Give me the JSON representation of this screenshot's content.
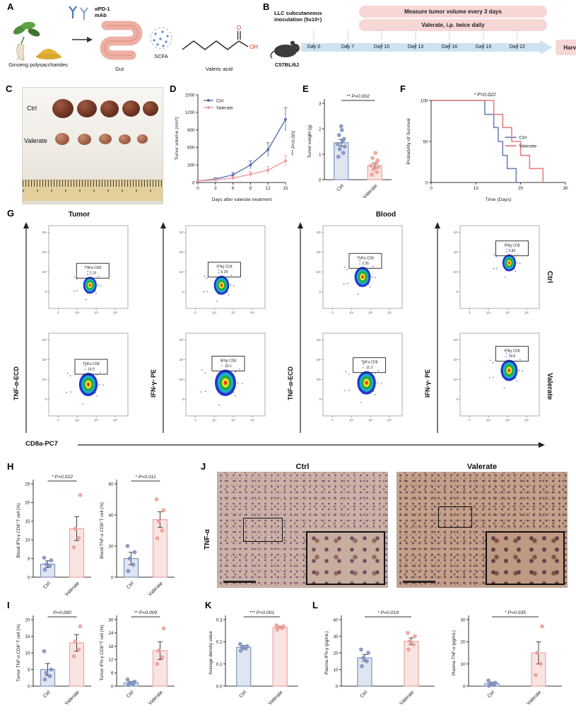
{
  "colors": {
    "ctrl_line": "#5b73ad",
    "val_line": "#ee9d9d",
    "ctrl_bar_fill": "#dfe6f2",
    "ctrl_bar_stroke": "#8093bf",
    "val_bar_fill": "#fae4e2",
    "val_bar_stroke": "#eba6a0",
    "ctrl_dot": "#7b8fc2",
    "val_dot": "#ef9a91",
    "surv_ctrl": "#6d83b8",
    "surv_val": "#e87f7f",
    "axis": "#333333"
  },
  "panels": {
    "A": {
      "label": "A",
      "apd1_l1": "αPD-1",
      "apd1_l2": "mAb",
      "ginseng_label": "Ginseng polysaccharides",
      "gut_label": "Gut",
      "scfa_label": "SCFA",
      "valeric_label": "Valeric acid",
      "structure_o": "O",
      "structure_oh": "OH"
    },
    "B": {
      "label": "B",
      "inoc_l1": "LLC subcutaneous",
      "inoc_l2": "inoculation (5x10⁶)",
      "measure_box": "Measure tumor volume every 3 days",
      "valerate_box": "Valerate, i.p. twice daily",
      "days": [
        "Day 0",
        "Day 7",
        "Day 10",
        "Day 13",
        "Day 16",
        "Day 19",
        "Day 22"
      ],
      "harvest": "Harvest",
      "mouse_strain": "C57BL/6J"
    },
    "C": {
      "label": "C",
      "row1": "Ctrl",
      "row2": "Valerate"
    },
    "D": {
      "label": "D",
      "chart": {
        "type": "line",
        "x": [
          0,
          3,
          6,
          9,
          12,
          15
        ],
        "xticks": [
          "0",
          "3",
          "6",
          "9",
          "12",
          "15"
        ],
        "series": [
          {
            "name": "Ctrl",
            "color": "#5b73ad",
            "values": [
              25,
              60,
              130,
              300,
              560,
              1080
            ],
            "errors": [
              10,
              20,
              40,
              70,
              120,
              200
            ]
          },
          {
            "name": "Valerate",
            "color": "#ee9d9d",
            "values": [
              25,
              45,
              75,
              140,
              210,
              370
            ],
            "errors": [
              8,
              15,
              25,
              45,
              60,
              90
            ]
          }
        ],
        "ylabel": "Tumor volume (mm³)",
        "xlabel": "Days after valerate treatment",
        "ylim": [
          0,
          1500
        ],
        "yticks": [
          "0",
          "300",
          "600",
          "900",
          "1200",
          "1500"
        ],
        "sig": "*** P<0.001"
      }
    },
    "E": {
      "label": "E",
      "chart": {
        "type": "bar",
        "categories": [
          "Ctrl",
          "Valerate"
        ],
        "values": [
          1.45,
          0.55
        ],
        "errors": [
          0.13,
          0.1
        ],
        "points": [
          [
            0.9,
            1.05,
            1.2,
            1.3,
            1.4,
            1.5,
            1.6,
            1.75,
            1.95,
            2.1
          ],
          [
            0.2,
            0.3,
            0.4,
            0.5,
            0.55,
            0.65,
            0.75,
            0.85,
            1.05
          ]
        ],
        "ylabel": "Tumor weight (g)",
        "ylim": [
          0,
          3
        ],
        "yticks": [
          "0",
          "1",
          "2",
          "3"
        ],
        "sig": "** P=0.002"
      }
    },
    "F": {
      "label": "F",
      "chart": {
        "type": "survival",
        "xlabel": "Time (Days)",
        "ylabel": "Probability of Survival",
        "xlim": [
          0,
          30
        ],
        "xticks": [
          "0",
          "10",
          "20",
          "30"
        ],
        "yticks": [
          "0",
          "50",
          "100"
        ],
        "sig": "* P=0.022",
        "series": [
          {
            "name": "Ctrl",
            "color": "#6d83b8",
            "points": [
              [
                0,
                100
              ],
              [
                12,
                100
              ],
              [
                12,
                83
              ],
              [
                14,
                83
              ],
              [
                14,
                67
              ],
              [
                15,
                67
              ],
              [
                15,
                50
              ],
              [
                16,
                50
              ],
              [
                16,
                33
              ],
              [
                17,
                33
              ],
              [
                17,
                17
              ],
              [
                19,
                17
              ],
              [
                19,
                0
              ]
            ]
          },
          {
            "name": "Valerate",
            "color": "#e87f7f",
            "points": [
              [
                0,
                100
              ],
              [
                14,
                100
              ],
              [
                14,
                83
              ],
              [
                16,
                83
              ],
              [
                16,
                67
              ],
              [
                18,
                67
              ],
              [
                18,
                50
              ],
              [
                20,
                50
              ],
              [
                20,
                33
              ],
              [
                22,
                33
              ],
              [
                22,
                17
              ],
              [
                25,
                17
              ],
              [
                25,
                0
              ]
            ]
          }
        ]
      }
    },
    "G": {
      "label": "G",
      "tumor_title": "Tumor",
      "blood_title": "Blood",
      "ctrl_label": "Ctrl",
      "valerate_label": "Valerate",
      "axis_labels": [
        "TNF-α-ECD",
        "IFN-γ- PE",
        "TNF-α-ECD",
        "IFN-γ- PE"
      ],
      "x_axis_label": "CD8a-PC7",
      "ytick_labels": [
        "10⁶",
        "10⁵",
        "10⁴",
        "0"
      ],
      "xtick_labels": [
        "0",
        "10⁴",
        "10⁵",
        "10⁶"
      ],
      "plots": [
        {
          "type": "flow",
          "gate": "TNFa CD8",
          "pct": "2.19",
          "bx": 0.52,
          "by": 0.72,
          "bs": 0.8
        },
        {
          "type": "flow",
          "gate": "IFNg CD8",
          "pct": "6.29",
          "bx": 0.45,
          "by": 0.72,
          "bs": 0.9
        },
        {
          "type": "flow",
          "gate": "TNFa CD8",
          "pct": "2.35",
          "bx": 0.5,
          "by": 0.62,
          "bs": 0.95
        },
        {
          "type": "flow",
          "gate": "IFNg CD8",
          "pct": "0.83",
          "bx": 0.62,
          "by": 0.45,
          "bs": 0.8
        },
        {
          "type": "flow",
          "gate": "TNFa CD8",
          "pct": "14.9",
          "bx": 0.5,
          "by": 0.62,
          "bs": 1.1
        },
        {
          "type": "flow",
          "gate": "IFNg CD8",
          "pct": "33.1",
          "bx": 0.5,
          "by": 0.6,
          "bs": 1.25
        },
        {
          "type": "flow",
          "gate": "TNFa CD8",
          "pct": "11.3",
          "bx": 0.55,
          "by": 0.6,
          "bs": 1.1
        },
        {
          "type": "flow",
          "gate": "IFNg CD8",
          "pct": "19.6",
          "bx": 0.62,
          "by": 0.45,
          "bs": 1.0
        }
      ]
    },
    "H": {
      "label": "H",
      "charts": [
        {
          "type": "bar",
          "categories": [
            "Ctrl",
            "Valerate"
          ],
          "values": [
            3.5,
            13
          ],
          "errors": [
            0.9,
            3.2
          ],
          "points": [
            [
              2,
              3,
              3.5,
              4.5,
              5.2
            ],
            [
              8,
              10.5,
              13,
              22
            ]
          ],
          "ylabel": "Blood IFN-γ CD8⁺T cell (%)",
          "ylim": [
            0,
            25
          ],
          "yticks": [
            "0",
            "5",
            "10",
            "15",
            "20",
            "25"
          ],
          "sig": "* P=0.022"
        },
        {
          "type": "bar",
          "categories": [
            "Ctrl",
            "Valerate"
          ],
          "values": [
            12,
            37
          ],
          "errors": [
            4,
            5
          ],
          "points": [
            [
              4,
              8,
              12,
              16,
              20
            ],
            [
              25,
              30,
              36,
              43,
              50
            ]
          ],
          "ylabel": "Blood TNF-α CD8⁺T cell (%)",
          "ylim": [
            0,
            60
          ],
          "yticks": [
            "0",
            "20",
            "40",
            "60"
          ],
          "sig": "* P=0.011"
        }
      ]
    },
    "I": {
      "label": "I",
      "charts": [
        {
          "type": "bar",
          "categories": [
            "Ctrl",
            "Valerate"
          ],
          "values": [
            5,
            13
          ],
          "errors": [
            1.8,
            2.5
          ],
          "points": [
            [
              2,
              3,
              4,
              5,
              10.5
            ],
            [
              9,
              11,
              13.5,
              18
            ]
          ],
          "ylabel": "Tumor TNF-α CD8⁺T cell (%)",
          "ylim": [
            0,
            20
          ],
          "yticks": [
            "0",
            "5",
            "10",
            "15",
            "20"
          ],
          "sig": "P=0.090"
        },
        {
          "type": "bar",
          "categories": [
            "Ctrl",
            "Valerate"
          ],
          "values": [
            1.5,
            16
          ],
          "errors": [
            0.6,
            4
          ],
          "points": [
            [
              0.5,
              1,
              1.5,
              2,
              3
            ],
            [
              10,
              13,
              16,
              26
            ]
          ],
          "ylabel": "Tumor IFN-γ CD8⁺T cell (%)",
          "ylim": [
            0,
            30
          ],
          "yticks": [
            "0",
            "6",
            "12",
            "18",
            "24",
            "30"
          ],
          "sig": "** P=0.009"
        }
      ]
    },
    "J": {
      "label": "J",
      "col1": "Ctrl",
      "col2": "Valerate",
      "row_label": "TNF-α"
    },
    "K": {
      "label": "K",
      "chart": {
        "type": "bar",
        "categories": [
          "Ctrl",
          "Valerate"
        ],
        "values": [
          0.175,
          0.265
        ],
        "errors": [
          0.008,
          0.005
        ],
        "points": [
          [
            0.16,
            0.17,
            0.175,
            0.18,
            0.19
          ],
          [
            0.255,
            0.262,
            0.266,
            0.27,
            0.274
          ]
        ],
        "ylabel": "Average density value",
        "ylim": [
          0,
          0.3
        ],
        "yticks": [
          "0.0",
          "0.1",
          "0.2",
          "0.3"
        ],
        "sig": "*** P<0.001"
      }
    },
    "L": {
      "label": "L",
      "charts": [
        {
          "type": "bar",
          "categories": [
            "Ctrl",
            "Valerate"
          ],
          "values": [
            17,
            27
          ],
          "errors": [
            2,
            2
          ],
          "points": [
            [
              12,
              15,
              17,
              20,
              22
            ],
            [
              22,
              25,
              27,
              30,
              32
            ]
          ],
          "ylabel": "Plasma IFN-γ (pg/mL)",
          "ylim": [
            0,
            40
          ],
          "yticks": [
            "0",
            "10",
            "20",
            "30",
            "40"
          ],
          "sig": "* P=0.019"
        },
        {
          "type": "bar",
          "categories": [
            "Ctrl",
            "Valerate"
          ],
          "values": [
            1.2,
            15
          ],
          "errors": [
            0.6,
            5
          ],
          "points": [
            [
              0.2,
              0.5,
              1,
              1.5,
              2.5
            ],
            [
              5,
              10,
              15,
              27
            ]
          ],
          "ylabel": "Plasma TNF-α (pg/mL)",
          "ylim": [
            0,
            30
          ],
          "yticks": [
            "0",
            "10",
            "20",
            "30"
          ],
          "sig": "* P=0.035"
        }
      ]
    }
  }
}
